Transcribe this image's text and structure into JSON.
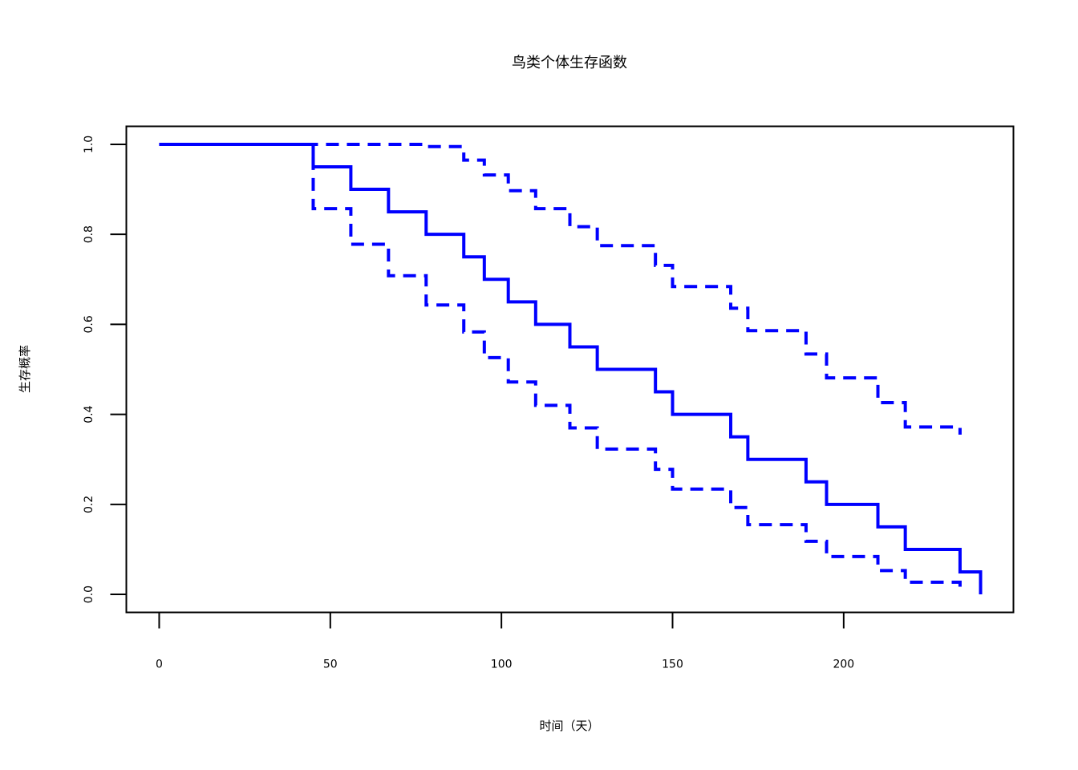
{
  "chart_data": {
    "type": "line",
    "step": true,
    "title": "鸟类个体生存函数",
    "xlabel": "时间（天）",
    "ylabel": "生存概率",
    "xlim": [
      -9.6,
      249.6
    ],
    "ylim": [
      -0.04,
      1.04
    ],
    "x_ticks": [
      0,
      50,
      100,
      150,
      200
    ],
    "y_ticks": [
      0.0,
      0.2,
      0.4,
      0.6,
      0.8,
      1.0
    ],
    "x_tick_labels": [
      "0",
      "50",
      "100",
      "150",
      "200"
    ],
    "y_tick_labels": [
      "0.0",
      "0.2",
      "0.4",
      "0.6",
      "0.8",
      "1.0"
    ],
    "grid": false,
    "color": "#0000ff",
    "series": [
      {
        "style": "solid",
        "x": [
          0,
          45,
          56,
          67,
          78,
          89,
          95,
          102,
          110,
          120,
          128,
          145,
          150,
          167,
          172,
          189,
          195,
          210,
          218,
          234,
          240
        ],
        "y": [
          1.0,
          0.95,
          0.9,
          0.85,
          0.8,
          0.75,
          0.7,
          0.65,
          0.6,
          0.55,
          0.5,
          0.45,
          0.4,
          0.35,
          0.3,
          0.25,
          0.2,
          0.15,
          0.1,
          0.05,
          0.0
        ]
      },
      {
        "style": "dashed",
        "x": [
          0,
          45,
          56,
          67,
          78,
          89,
          95,
          102,
          110,
          120,
          128,
          145,
          150,
          167,
          172,
          189,
          195,
          210,
          218,
          234
        ],
        "y": [
          1.0,
          0.857,
          0.778,
          0.708,
          0.643,
          0.583,
          0.526,
          0.472,
          0.42,
          0.37,
          0.323,
          0.278,
          0.234,
          0.193,
          0.155,
          0.118,
          0.084,
          0.053,
          0.027,
          0.005
        ]
      },
      {
        "style": "dashed",
        "x": [
          0,
          45,
          56,
          67,
          78,
          89,
          95,
          102,
          110,
          120,
          128,
          145,
          150,
          167,
          172,
          189,
          195,
          210,
          218,
          234
        ],
        "y": [
          1.0,
          1.0,
          1.0,
          1.0,
          0.995,
          0.965,
          0.932,
          0.897,
          0.857,
          0.817,
          0.775,
          0.731,
          0.684,
          0.636,
          0.586,
          0.534,
          0.481,
          0.426,
          0.372,
          0.355
        ]
      }
    ]
  }
}
